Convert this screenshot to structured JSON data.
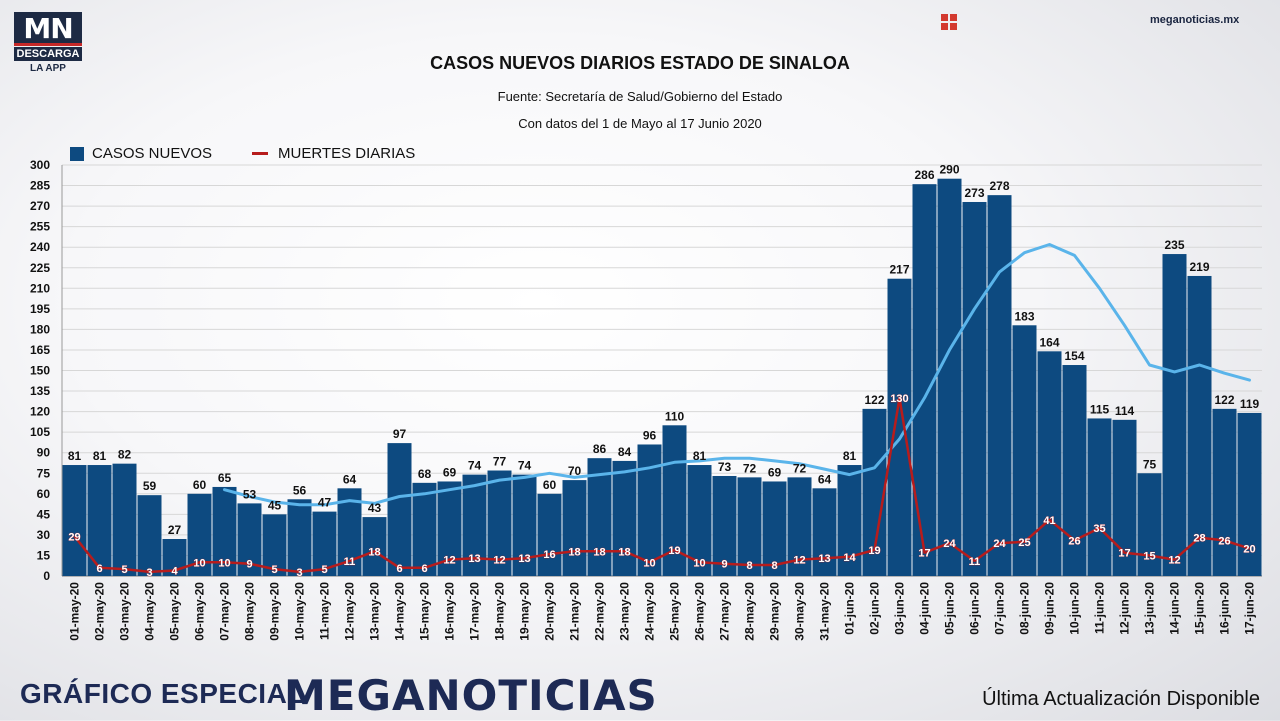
{
  "logo": {
    "mark": "MN",
    "line1": "DESCARGA",
    "line2": "LA APP"
  },
  "site": "meganoticias.mx",
  "footer": {
    "left": "GRÁFICO ESPECIAL",
    "brand": "MEGANOTICIAS",
    "right": "Última Actualización Disponible"
  },
  "colors": {
    "bars": "#0d4a80",
    "deaths": "#b71c1c",
    "trend": "#5ab4ea",
    "brand": "#1d2a55"
  },
  "chart_data": {
    "type": "bar",
    "title": "CASOS NUEVOS DIARIOS ESTADO DE SINALOA",
    "subtitle": "Fuente: Secretaría de Salud/Gobierno del Estado",
    "subtitle2": "Con datos del 1 de Mayo al 17 Junio 2020",
    "ylim": [
      0,
      300
    ],
    "ytick_step": 15,
    "yticks": [
      "0",
      "15",
      "30",
      "45",
      "60",
      "75",
      "90",
      "105",
      "120",
      "135",
      "150",
      "165",
      "180",
      "195",
      "210",
      "225",
      "240",
      "255",
      "270",
      "285",
      "300"
    ],
    "grid": true,
    "legend_position": "top-left",
    "categories": [
      "01-may-20",
      "02-may-20",
      "03-may-20",
      "04-may-20",
      "05-may-20",
      "06-may-20",
      "07-may-20",
      "08-may-20",
      "09-may-20",
      "10-may-20",
      "11-may-20",
      "12-may-20",
      "13-may-20",
      "14-may-20",
      "15-may-20",
      "16-may-20",
      "17-may-20",
      "18-may-20",
      "19-may-20",
      "20-may-20",
      "21-may-20",
      "22-may-20",
      "23-may-20",
      "24-may-20",
      "25-may-20",
      "26-may-20",
      "27-may-20",
      "28-may-20",
      "29-may-20",
      "30-may-20",
      "31-may-20",
      "01-jun-20",
      "02-jun-20",
      "03-jun-20",
      "04-jun-20",
      "05-jun-20",
      "06-jun-20",
      "07-jun-20",
      "08-jun-20",
      "09-jun-20",
      "10-jun-20",
      "11-jun-20",
      "12-jun-20",
      "13-jun-20",
      "14-jun-20",
      "15-jun-20",
      "16-jun-20",
      "17-jun-20"
    ],
    "series": [
      {
        "name": "CASOS NUEVOS",
        "type": "bar",
        "values": [
          81,
          81,
          82,
          59,
          27,
          60,
          65,
          53,
          45,
          56,
          47,
          64,
          43,
          97,
          68,
          69,
          74,
          77,
          74,
          60,
          70,
          86,
          84,
          96,
          110,
          81,
          73,
          72,
          69,
          72,
          64,
          81,
          122,
          217,
          286,
          290,
          273,
          278,
          183,
          164,
          154,
          115,
          114,
          75,
          235,
          219,
          122,
          119
        ]
      },
      {
        "name": "MUERTES DIARIAS",
        "type": "line",
        "values": [
          29,
          6,
          5,
          3,
          4,
          10,
          10,
          9,
          5,
          3,
          5,
          11,
          18,
          6,
          6,
          12,
          13,
          12,
          13,
          16,
          18,
          18,
          18,
          10,
          19,
          10,
          9,
          8,
          8,
          12,
          13,
          14,
          19,
          130,
          17,
          24,
          11,
          24,
          25,
          41,
          26,
          35,
          17,
          15,
          12,
          28,
          26,
          20
        ]
      }
    ],
    "trend": {
      "type": "line",
      "values": [
        null,
        null,
        null,
        null,
        null,
        null,
        63,
        58,
        54,
        52,
        52,
        55,
        53,
        58,
        60,
        63,
        66,
        70,
        72,
        75,
        72,
        74,
        76,
        79,
        83,
        84,
        86,
        86,
        84,
        82,
        78,
        74,
        79,
        100,
        130,
        165,
        195,
        222,
        236,
        242,
        234,
        210,
        183,
        154,
        149,
        154,
        148,
        143
      ]
    }
  }
}
